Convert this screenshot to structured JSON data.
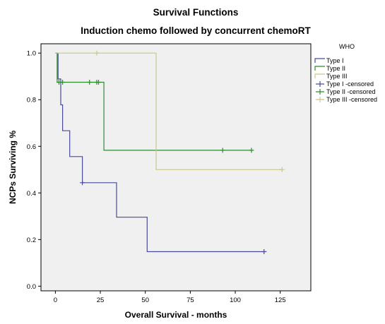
{
  "chart_data": {
    "type": "line",
    "title": "Survival Functions",
    "subtitle": "Induction chemo followed by concurrent chemoRT",
    "xlabel": "Overall Survival - months",
    "ylabel": "NCPs Surviving %",
    "xlim": [
      -8,
      142
    ],
    "ylim": [
      -0.02,
      1.04
    ],
    "x_ticks": [
      0,
      25,
      50,
      75,
      100,
      125
    ],
    "x_tick_labels": [
      "0",
      "25",
      "50",
      "75",
      "100",
      "125"
    ],
    "y_ticks": [
      0,
      0.2,
      0.4,
      0.6,
      0.8,
      1.0
    ],
    "y_tick_labels": [
      "0.0",
      "0.2",
      "0.4",
      "0.6",
      "0.8",
      "1.0"
    ],
    "grid": false,
    "legend_title": "WHO",
    "legend_position": "right",
    "background": "#f0f0f0",
    "series": [
      {
        "name": "Type I",
        "color": "#4a4a99",
        "steps": [
          [
            0,
            1.0
          ],
          [
            1.5,
            0.889
          ],
          [
            3,
            0.778
          ],
          [
            4,
            0.667
          ],
          [
            8,
            0.556
          ],
          [
            15,
            0.444
          ],
          [
            34,
            0.296
          ],
          [
            51,
            0.148
          ],
          [
            116,
            0.148
          ]
        ],
        "censored_name": "Type I -censored",
        "censored": [
          [
            15,
            0.444
          ],
          [
            116,
            0.148
          ]
        ]
      },
      {
        "name": "Type II",
        "color": "#2e8b2e",
        "steps": [
          [
            0,
            1.0
          ],
          [
            1,
            0.875
          ],
          [
            27,
            0.583
          ],
          [
            109,
            0.583
          ]
        ],
        "censored_name": "Type II -censored",
        "censored": [
          [
            2,
            0.875
          ],
          [
            4,
            0.875
          ],
          [
            19,
            0.875
          ],
          [
            23,
            0.875
          ],
          [
            24,
            0.875
          ],
          [
            93,
            0.583
          ],
          [
            109,
            0.583
          ]
        ]
      },
      {
        "name": "Type III",
        "color": "#c8c88c",
        "steps": [
          [
            0,
            1.0
          ],
          [
            56,
            0.5
          ],
          [
            126,
            0.5
          ]
        ],
        "censored_name": "Type III -censored",
        "censored": [
          [
            23,
            1.0
          ],
          [
            126,
            0.5
          ]
        ]
      }
    ]
  }
}
